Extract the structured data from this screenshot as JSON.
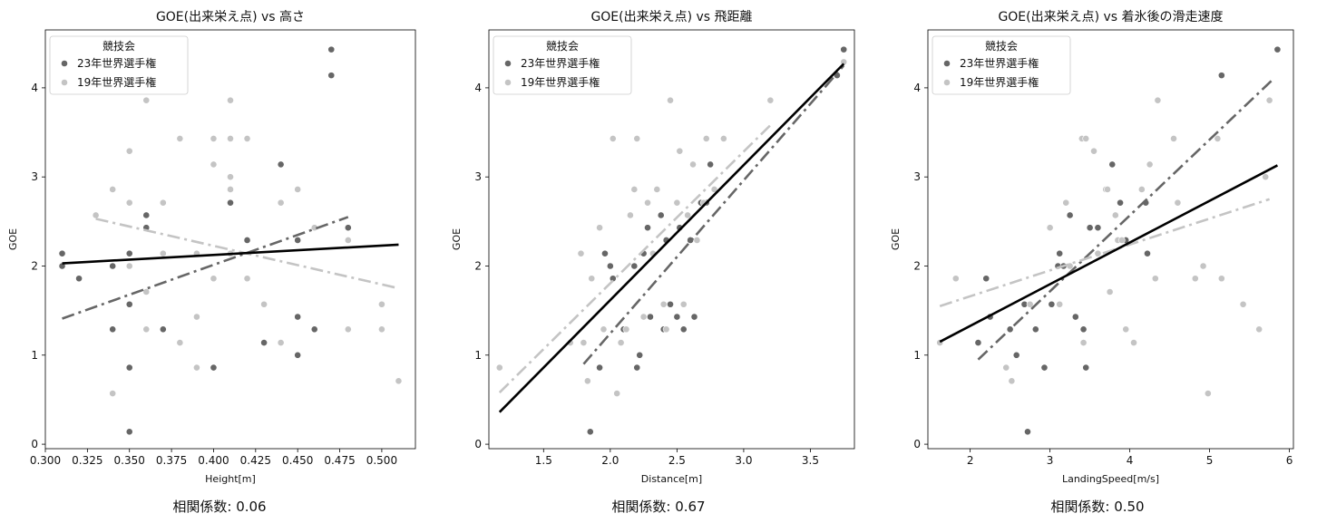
{
  "colors": {
    "series23": "#666666",
    "series19": "#c4c4c4",
    "overall": "#000000"
  },
  "legend": {
    "title": "競技会",
    "entries": [
      "23年世界選手権",
      "19年世界選手権"
    ],
    "position": "top-left"
  },
  "chart_data": [
    {
      "type": "scatter",
      "title": "GOE(出来栄え点) vs 高さ",
      "xlabel": "Height[m]",
      "ylabel": "GOE",
      "xlim": [
        0.3,
        0.52
      ],
      "ylim": [
        -0.05,
        4.65
      ],
      "xticks": [
        "0.300",
        "0.325",
        "0.350",
        "0.375",
        "0.400",
        "0.425",
        "0.450",
        "0.475",
        "0.500"
      ],
      "yticks": [
        "0",
        "1",
        "2",
        "3",
        "4"
      ],
      "grid": false,
      "correlation_text": "相関係数: 0.06",
      "series": [
        {
          "name": "23年世界選手権",
          "color_key": "series23",
          "x": [
            0.31,
            0.31,
            0.32,
            0.34,
            0.34,
            0.35,
            0.35,
            0.35,
            0.35,
            0.36,
            0.36,
            0.37,
            0.4,
            0.41,
            0.42,
            0.43,
            0.44,
            0.45,
            0.45,
            0.45,
            0.46,
            0.47,
            0.47,
            0.48
          ],
          "y": [
            2.14,
            2.0,
            1.86,
            2.0,
            1.29,
            2.14,
            1.57,
            0.86,
            0.14,
            2.57,
            2.43,
            1.29,
            0.86,
            2.71,
            2.29,
            1.14,
            3.14,
            2.29,
            1.43,
            1.0,
            1.29,
            4.43,
            4.14,
            2.43
          ]
        },
        {
          "name": "19年世界選手権",
          "color_key": "series19",
          "x": [
            0.33,
            0.34,
            0.34,
            0.35,
            0.35,
            0.35,
            0.36,
            0.36,
            0.36,
            0.37,
            0.37,
            0.38,
            0.38,
            0.39,
            0.39,
            0.39,
            0.4,
            0.4,
            0.4,
            0.41,
            0.41,
            0.41,
            0.41,
            0.41,
            0.42,
            0.42,
            0.43,
            0.44,
            0.44,
            0.45,
            0.46,
            0.48,
            0.48,
            0.5,
            0.5,
            0.51
          ],
          "y": [
            2.57,
            2.86,
            0.57,
            3.29,
            2.71,
            2.0,
            3.86,
            1.71,
            1.29,
            2.71,
            2.14,
            3.43,
            1.14,
            2.14,
            1.43,
            0.86,
            3.43,
            3.14,
            1.86,
            3.86,
            3.43,
            3.0,
            2.86,
            2.14,
            3.43,
            1.86,
            1.57,
            2.71,
            1.14,
            2.86,
            2.43,
            2.29,
            1.29,
            1.57,
            1.29,
            0.71
          ]
        }
      ],
      "trendlines": [
        {
          "color_key": "series23",
          "style": "dashdot",
          "x": [
            0.31,
            0.48
          ],
          "y": [
            1.41,
            2.55
          ]
        },
        {
          "color_key": "series19",
          "style": "dashdot",
          "x": [
            0.33,
            0.51
          ],
          "y": [
            2.53,
            1.75
          ]
        },
        {
          "color_key": "overall",
          "style": "solid",
          "x": [
            0.31,
            0.51
          ],
          "y": [
            2.03,
            2.24
          ]
        }
      ]
    },
    {
      "type": "scatter",
      "title": "GOE(出来栄え点) vs 飛距離",
      "xlabel": "Distance[m]",
      "ylabel": "GOE",
      "xlim": [
        1.09,
        3.83
      ],
      "ylim": [
        -0.05,
        4.65
      ],
      "xticks": [
        "1.5",
        "2.0",
        "2.5",
        "3.0",
        "3.5"
      ],
      "yticks": [
        "0",
        "1",
        "2",
        "3",
        "4"
      ],
      "grid": false,
      "correlation_text": "相関係数: 0.67",
      "series": [
        {
          "name": "23年世界選手権",
          "color_key": "series23",
          "x": [
            1.85,
            1.92,
            1.96,
            2.0,
            2.02,
            2.1,
            2.18,
            2.2,
            2.22,
            2.25,
            2.28,
            2.3,
            2.38,
            2.4,
            2.42,
            2.45,
            2.5,
            2.52,
            2.55,
            2.6,
            2.63,
            2.68,
            2.72,
            2.75,
            3.7,
            3.75
          ],
          "y": [
            0.14,
            0.86,
            2.14,
            2.0,
            1.86,
            1.29,
            2.0,
            0.86,
            1.0,
            2.14,
            2.43,
            1.43,
            2.57,
            1.29,
            2.29,
            1.57,
            1.43,
            2.43,
            1.29,
            2.29,
            1.43,
            2.71,
            2.71,
            3.14,
            4.14,
            4.43
          ]
        },
        {
          "name": "19年世界選手権",
          "color_key": "series19",
          "x": [
            1.17,
            1.7,
            1.78,
            1.8,
            1.83,
            1.86,
            1.92,
            1.95,
            2.02,
            2.05,
            2.08,
            2.12,
            2.15,
            2.18,
            2.2,
            2.25,
            2.28,
            2.32,
            2.35,
            2.4,
            2.42,
            2.45,
            2.5,
            2.52,
            2.55,
            2.58,
            2.62,
            2.65,
            2.7,
            2.72,
            2.78,
            2.85,
            3.2,
            3.75
          ],
          "y": [
            0.86,
            1.14,
            2.14,
            1.14,
            0.71,
            1.86,
            2.43,
            1.29,
            3.43,
            0.57,
            1.14,
            1.29,
            2.57,
            2.86,
            3.43,
            1.43,
            2.71,
            2.14,
            2.86,
            1.57,
            1.29,
            3.86,
            2.71,
            3.29,
            1.57,
            2.57,
            3.14,
            2.29,
            2.71,
            3.43,
            2.86,
            3.43,
            3.86,
            4.29
          ]
        }
      ],
      "trendlines": [
        {
          "color_key": "series23",
          "style": "dashdot",
          "x": [
            1.8,
            3.75
          ],
          "y": [
            0.9,
            4.25
          ]
        },
        {
          "color_key": "series19",
          "style": "dashdot",
          "x": [
            1.17,
            3.2
          ],
          "y": [
            0.58,
            3.58
          ]
        },
        {
          "color_key": "overall",
          "style": "solid",
          "x": [
            1.17,
            3.75
          ],
          "y": [
            0.36,
            4.27
          ]
        }
      ]
    },
    {
      "type": "scatter",
      "title": "GOE(出来栄え点) vs 着氷後の滑走速度",
      "xlabel": "LandingSpeed[m/s]",
      "ylabel": "GOE",
      "xlim": [
        1.47,
        6.05
      ],
      "ylim": [
        -0.05,
        4.65
      ],
      "xticks": [
        "2",
        "3",
        "4",
        "5",
        "6"
      ],
      "yticks": [
        "0",
        "1",
        "2",
        "3",
        "4"
      ],
      "grid": false,
      "correlation_text": "相関係数: 0.50",
      "series": [
        {
          "name": "23年世界選手権",
          "color_key": "series23",
          "x": [
            2.1,
            2.2,
            2.25,
            2.5,
            2.58,
            2.68,
            2.72,
            2.82,
            2.93,
            3.02,
            3.1,
            3.12,
            3.17,
            3.25,
            3.32,
            3.42,
            3.45,
            3.5,
            3.6,
            3.78,
            3.88,
            3.95,
            4.2,
            4.22,
            5.15,
            5.85
          ],
          "y": [
            1.14,
            1.86,
            1.43,
            1.29,
            1.0,
            1.57,
            0.14,
            1.29,
            0.86,
            1.57,
            2.0,
            2.14,
            2.0,
            2.57,
            1.43,
            1.29,
            0.86,
            2.43,
            2.43,
            3.14,
            2.71,
            2.29,
            2.71,
            2.14,
            4.14,
            4.43
          ]
        },
        {
          "name": "19年世界選手権",
          "color_key": "series19",
          "x": [
            1.62,
            1.82,
            2.45,
            2.52,
            2.75,
            3.0,
            3.12,
            3.2,
            3.25,
            3.4,
            3.42,
            3.45,
            3.55,
            3.6,
            3.7,
            3.72,
            3.75,
            3.82,
            3.85,
            3.9,
            3.95,
            4.05,
            4.15,
            4.25,
            4.32,
            4.35,
            4.55,
            4.6,
            4.82,
            4.92,
            4.98,
            5.1,
            5.15,
            5.42,
            5.62,
            5.7,
            5.75
          ],
          "y": [
            1.14,
            1.86,
            0.86,
            0.71,
            1.57,
            2.43,
            1.57,
            2.71,
            2.0,
            3.43,
            1.14,
            3.43,
            3.29,
            2.14,
            2.86,
            2.86,
            1.71,
            2.57,
            2.29,
            2.29,
            1.29,
            1.14,
            2.86,
            3.14,
            1.86,
            3.86,
            3.43,
            2.71,
            1.86,
            2.0,
            0.57,
            3.43,
            1.86,
            1.57,
            1.29,
            3.0,
            3.86
          ]
        }
      ],
      "trendlines": [
        {
          "color_key": "series23",
          "style": "dashdot",
          "x": [
            2.1,
            5.8
          ],
          "y": [
            0.95,
            4.1
          ]
        },
        {
          "color_key": "series19",
          "style": "dashdot",
          "x": [
            1.62,
            5.75
          ],
          "y": [
            1.55,
            2.75
          ]
        },
        {
          "color_key": "overall",
          "style": "solid",
          "x": [
            1.62,
            5.85
          ],
          "y": [
            1.15,
            3.13
          ]
        }
      ]
    }
  ]
}
